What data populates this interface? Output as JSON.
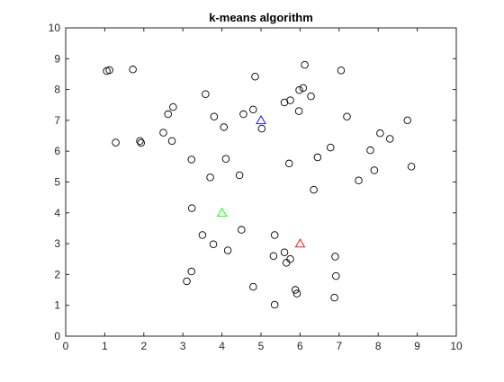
{
  "chart_data": {
    "type": "scatter",
    "title": "k-means algorithm",
    "xlabel": "",
    "ylabel": "",
    "xlim": [
      0,
      10
    ],
    "ylim": [
      0,
      10
    ],
    "x_ticks": [
      0,
      1,
      2,
      3,
      4,
      5,
      6,
      7,
      8,
      9,
      10
    ],
    "y_ticks": [
      0,
      1,
      2,
      3,
      4,
      5,
      6,
      7,
      8,
      9,
      10
    ],
    "grid": false,
    "series": [
      {
        "marker": "circle",
        "color": "#000000",
        "points": [
          [
            1.05,
            8.6
          ],
          [
            1.12,
            8.63
          ],
          [
            1.72,
            8.65
          ],
          [
            1.28,
            6.28
          ],
          [
            1.9,
            6.33
          ],
          [
            1.93,
            6.27
          ],
          [
            2.5,
            6.6
          ],
          [
            2.62,
            7.2
          ],
          [
            2.75,
            7.43
          ],
          [
            2.72,
            6.33
          ],
          [
            3.58,
            7.85
          ],
          [
            3.8,
            7.12
          ],
          [
            4.05,
            6.78
          ],
          [
            3.22,
            5.73
          ],
          [
            4.1,
            5.75
          ],
          [
            3.7,
            5.15
          ],
          [
            4.45,
            5.22
          ],
          [
            4.55,
            7.2
          ],
          [
            4.8,
            7.35
          ],
          [
            4.85,
            8.42
          ],
          [
            5.02,
            6.73
          ],
          [
            5.6,
            7.58
          ],
          [
            5.75,
            7.65
          ],
          [
            5.97,
            7.3
          ],
          [
            5.98,
            7.98
          ],
          [
            6.08,
            8.05
          ],
          [
            6.12,
            8.8
          ],
          [
            6.28,
            7.78
          ],
          [
            7.05,
            8.62
          ],
          [
            7.2,
            7.12
          ],
          [
            5.72,
            5.6
          ],
          [
            6.45,
            5.8
          ],
          [
            6.35,
            4.75
          ],
          [
            6.78,
            6.12
          ],
          [
            7.5,
            5.05
          ],
          [
            7.8,
            6.03
          ],
          [
            7.9,
            5.38
          ],
          [
            8.05,
            6.58
          ],
          [
            8.3,
            6.4
          ],
          [
            8.75,
            7.0
          ],
          [
            8.85,
            5.5
          ],
          [
            3.23,
            4.15
          ],
          [
            3.5,
            3.28
          ],
          [
            3.78,
            2.98
          ],
          [
            4.15,
            2.78
          ],
          [
            4.5,
            3.45
          ],
          [
            3.22,
            2.1
          ],
          [
            3.1,
            1.78
          ],
          [
            4.8,
            1.6
          ],
          [
            5.35,
            3.28
          ],
          [
            5.32,
            2.6
          ],
          [
            5.6,
            2.72
          ],
          [
            5.65,
            2.38
          ],
          [
            5.75,
            2.5
          ],
          [
            5.88,
            1.5
          ],
          [
            5.92,
            1.38
          ],
          [
            5.35,
            1.02
          ],
          [
            6.9,
            2.58
          ],
          [
            6.92,
            1.95
          ],
          [
            6.88,
            1.25
          ]
        ]
      },
      {
        "marker": "triangle",
        "color": "#0000ff",
        "points": [
          [
            5.0,
            7.0
          ]
        ]
      },
      {
        "marker": "triangle",
        "color": "#00ff00",
        "points": [
          [
            4.0,
            4.0
          ]
        ]
      },
      {
        "marker": "triangle",
        "color": "#ff0000",
        "points": [
          [
            6.0,
            3.0
          ]
        ]
      }
    ]
  }
}
